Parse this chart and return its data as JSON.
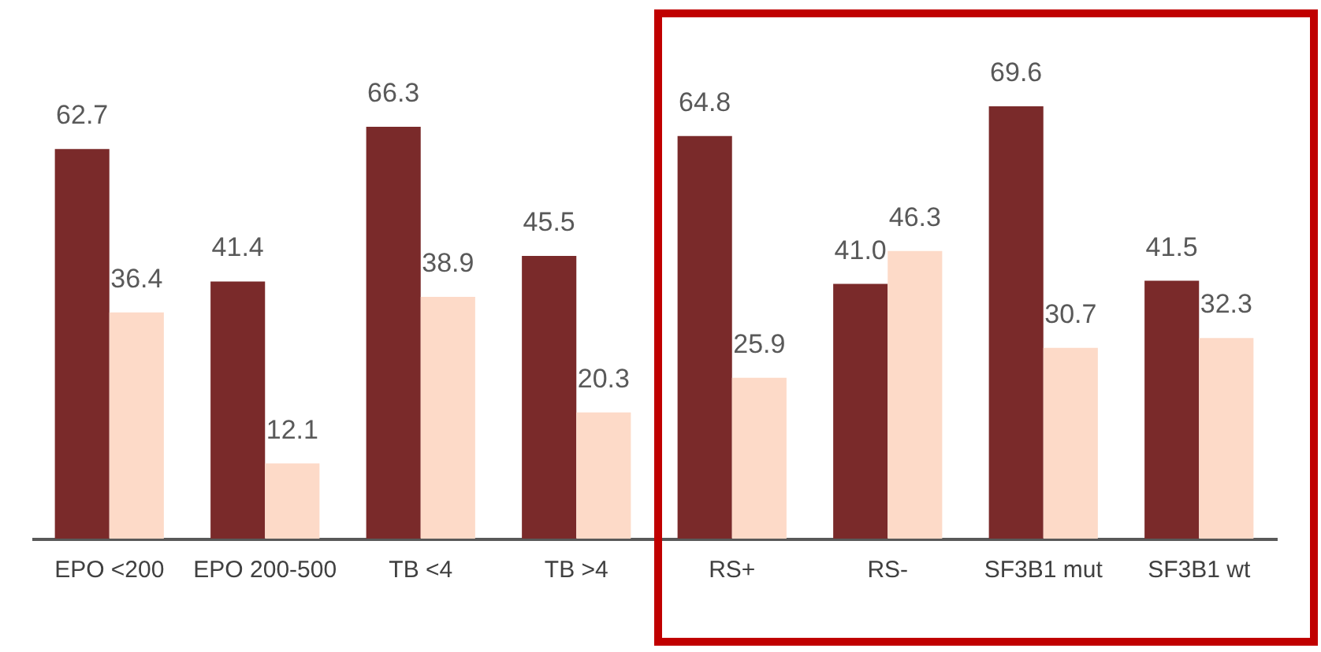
{
  "chart_data": {
    "type": "bar",
    "categories": [
      "EPO <200",
      "EPO 200-500",
      "TB <4",
      "TB >4",
      "RS+",
      "RS-",
      "SF3B1 mut",
      "SF3B1 wt"
    ],
    "series": [
      {
        "color": "#7a2a2a",
        "values": [
          62.7,
          41.4,
          66.3,
          45.5,
          64.8,
          41.0,
          69.6,
          41.5
        ],
        "value_labels": [
          "62.7",
          "41.4",
          "66.3",
          "45.5",
          "64.8",
          "41.0",
          "69.6",
          "41.5"
        ]
      },
      {
        "color": "#fddac8",
        "values": [
          36.4,
          12.1,
          38.9,
          20.3,
          25.9,
          46.3,
          30.7,
          32.3
        ],
        "value_labels": [
          "36.4",
          "12.1",
          "38.9",
          "20.3",
          "25.9",
          "46.3",
          "30.7",
          "32.3"
        ]
      }
    ],
    "legend": false,
    "grid": false
  }
}
